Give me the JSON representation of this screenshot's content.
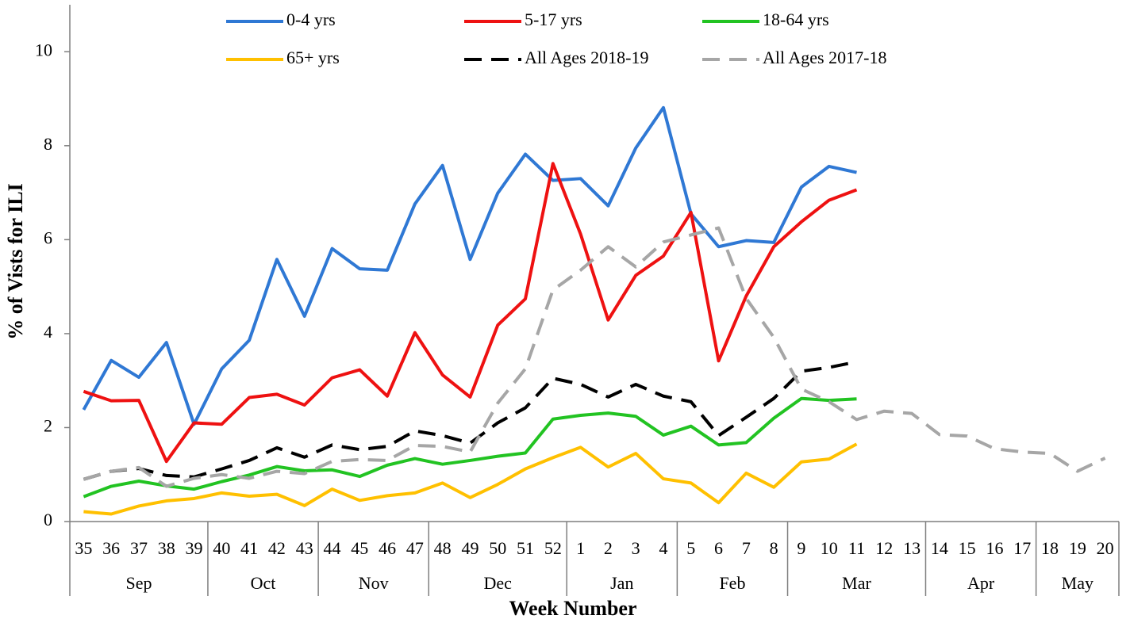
{
  "chart_data": {
    "type": "line",
    "x_label": "Week Number",
    "y_label": "% of Vists for ILI",
    "categories": [
      "35",
      "36",
      "37",
      "38",
      "39",
      "40",
      "41",
      "42",
      "43",
      "44",
      "45",
      "46",
      "47",
      "48",
      "49",
      "50",
      "51",
      "52",
      "1",
      "2",
      "3",
      "4",
      "5",
      "6",
      "7",
      "8",
      "9",
      "10",
      "11",
      "12",
      "13",
      "14",
      "15",
      "16",
      "17",
      "18",
      "19",
      "20"
    ],
    "x_groups": [
      "Sep",
      "Sep",
      "Sep",
      "Sep",
      "Sep",
      "Oct",
      "Oct",
      "Oct",
      "Oct",
      "Nov",
      "Nov",
      "Nov",
      "Nov",
      "Dec",
      "Dec",
      "Dec",
      "Dec",
      "Dec",
      "Jan",
      "Jan",
      "Jan",
      "Jan",
      "Feb",
      "Feb",
      "Feb",
      "Feb",
      "Mar",
      "Mar",
      "Mar",
      "Mar",
      "Mar",
      "Apr",
      "Apr",
      "Apr",
      "Apr",
      "May",
      "May",
      "May"
    ],
    "ylim": [
      0,
      11
    ],
    "yticks": [
      0,
      2,
      4,
      6,
      8,
      10
    ],
    "grid": false,
    "legend": "top",
    "series": [
      {
        "name": "0-4 yrs",
        "color": "#2f78d4",
        "dashed": false,
        "values": [
          2.38,
          3.43,
          3.07,
          3.81,
          2.07,
          3.25,
          3.86,
          5.58,
          4.37,
          5.81,
          5.38,
          5.35,
          6.76,
          7.58,
          5.58,
          6.99,
          7.82,
          7.26,
          7.3,
          6.72,
          7.95,
          8.81,
          6.55,
          5.85,
          5.98,
          5.94,
          7.12,
          7.56,
          7.43,
          null,
          null,
          null,
          null,
          null,
          null,
          null,
          null,
          null
        ]
      },
      {
        "name": "5-17 yrs",
        "color": "#ee1111",
        "dashed": false,
        "values": [
          2.77,
          2.57,
          2.58,
          1.28,
          2.1,
          2.07,
          2.64,
          2.71,
          2.48,
          3.06,
          3.23,
          2.67,
          4.02,
          3.12,
          2.65,
          4.18,
          4.74,
          7.62,
          6.12,
          4.29,
          5.24,
          5.65,
          6.58,
          3.42,
          4.8,
          5.85,
          6.38,
          6.84,
          7.06,
          null,
          null,
          null,
          null,
          null,
          null,
          null,
          null,
          null
        ]
      },
      {
        "name": "18-64 yrs",
        "color": "#22c322",
        "dashed": false,
        "values": [
          0.53,
          0.75,
          0.86,
          0.76,
          0.69,
          0.85,
          0.99,
          1.17,
          1.08,
          1.1,
          0.96,
          1.2,
          1.34,
          1.22,
          1.3,
          1.39,
          1.46,
          2.18,
          2.26,
          2.31,
          2.24,
          1.84,
          2.03,
          1.63,
          1.68,
          2.2,
          2.62,
          2.58,
          2.61,
          null,
          null,
          null,
          null,
          null,
          null,
          null,
          null,
          null
        ]
      },
      {
        "name": "65+ yrs",
        "color": "#ffc000",
        "dashed": false,
        "values": [
          0.21,
          0.16,
          0.33,
          0.44,
          0.49,
          0.61,
          0.54,
          0.58,
          0.34,
          0.69,
          0.45,
          0.55,
          0.61,
          0.82,
          0.51,
          0.79,
          1.12,
          1.36,
          1.58,
          1.16,
          1.45,
          0.91,
          0.82,
          0.4,
          1.03,
          0.73,
          1.27,
          1.33,
          1.65,
          null,
          null,
          null,
          null,
          null,
          null,
          null,
          null,
          null
        ]
      },
      {
        "name": "All Ages 2018-19",
        "color": "#000000",
        "dashed": true,
        "values": [
          0.9,
          1.07,
          1.13,
          0.98,
          0.95,
          1.12,
          1.3,
          1.57,
          1.37,
          1.63,
          1.53,
          1.6,
          1.93,
          1.83,
          1.67,
          2.1,
          2.42,
          3.05,
          2.92,
          2.65,
          2.92,
          2.67,
          2.55,
          1.83,
          2.22,
          2.62,
          3.2,
          3.28,
          3.4,
          null,
          null,
          null,
          null,
          null,
          null,
          null,
          null,
          null
        ]
      },
      {
        "name": "All Ages 2017-18",
        "color": "#a6a6a6",
        "dashed": true,
        "values": [
          0.9,
          1.07,
          1.15,
          0.75,
          0.92,
          1.0,
          0.92,
          1.07,
          1.02,
          1.28,
          1.32,
          1.3,
          1.62,
          1.6,
          1.48,
          2.52,
          3.25,
          4.93,
          5.35,
          5.85,
          5.42,
          5.95,
          6.1,
          6.25,
          4.75,
          3.92,
          2.82,
          2.55,
          2.17,
          2.35,
          2.3,
          1.85,
          1.82,
          1.55,
          1.48,
          1.45,
          1.07,
          1.35
        ]
      }
    ]
  }
}
